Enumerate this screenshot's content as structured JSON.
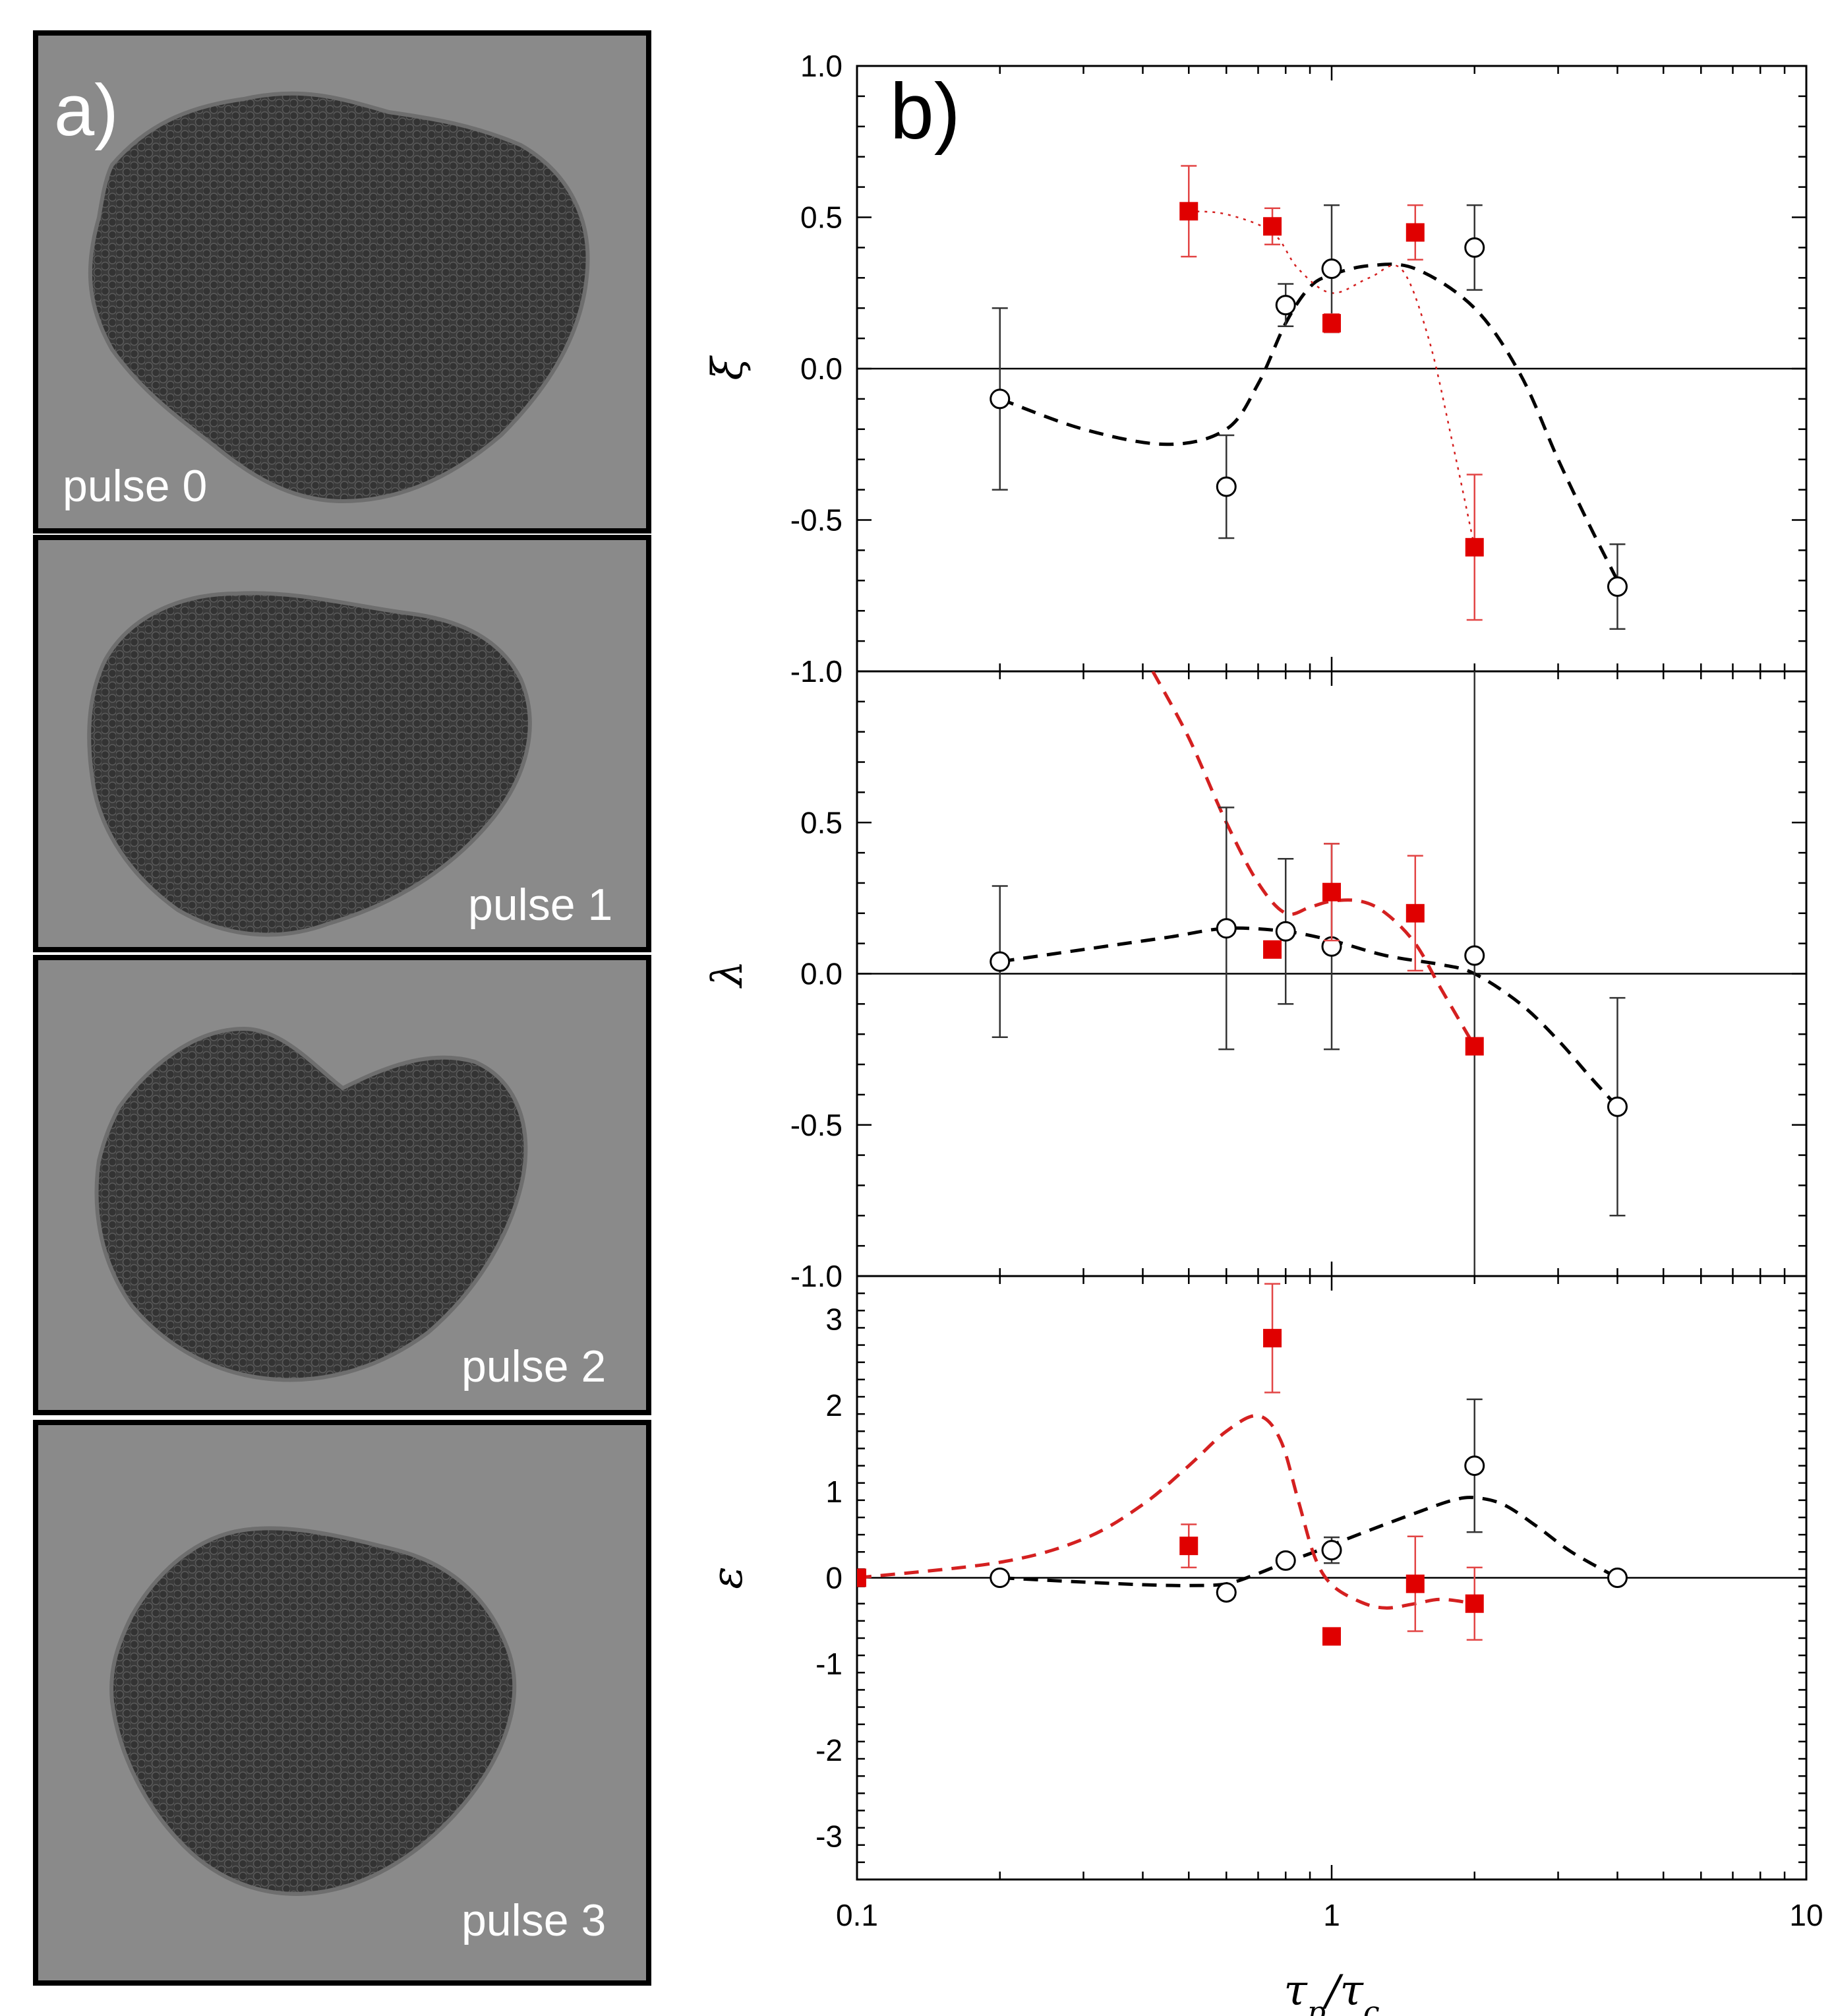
{
  "panel_a": {
    "label": "a)",
    "images": [
      {
        "label": "pulse 0"
      },
      {
        "label": "pulse 1"
      },
      {
        "label": "pulse 2"
      },
      {
        "label": "pulse 3"
      }
    ]
  },
  "chart_data": {
    "label": "b)",
    "type": "scatter",
    "xscale": "log",
    "xlim": [
      0.1,
      10
    ],
    "xlabel": "τp/τc",
    "xticks": [
      0.1,
      1,
      10
    ],
    "xtick_labels": [
      "0.1",
      "1",
      "10"
    ],
    "colors": {
      "open": "#000000",
      "red": "#e00000",
      "axes": "#000000"
    },
    "panels": [
      {
        "ylabel": "ξ",
        "ylim": [
          -1.0,
          1.0
        ],
        "yticks": [
          1.0,
          0.5,
          0.0,
          -0.5,
          -1.0
        ],
        "ytick_labels": [
          "1.0",
          "0.5",
          "0.0",
          "-0.5",
          "-1.0"
        ],
        "series": [
          {
            "name": "open circles",
            "marker": "open-circle",
            "x": [
              0.2,
              0.6,
              0.8,
              1.0,
              2.0,
              4.0
            ],
            "y": [
              -0.1,
              -0.39,
              0.21,
              0.33,
              0.4,
              -0.72
            ],
            "err": [
              0.3,
              0.17,
              0.07,
              0.21,
              0.14,
              0.14
            ]
          },
          {
            "name": "red squares",
            "marker": "filled-square",
            "x": [
              0.5,
              0.75,
              1.0,
              1.5,
              2.0
            ],
            "y": [
              0.52,
              0.47,
              0.15,
              0.45,
              -0.59
            ],
            "err": [
              0.15,
              0.06,
              0.03,
              0.09,
              0.24
            ]
          }
        ],
        "fits": [
          {
            "name": "black dashed fit",
            "style": "dashed",
            "x": [
              0.2,
              0.3,
              0.45,
              0.6,
              0.7,
              0.8,
              0.9,
              1.0,
              1.2,
              1.5,
              2.0,
              2.5,
              3.0,
              3.5,
              4.0
            ],
            "y": [
              -0.1,
              -0.2,
              -0.25,
              -0.2,
              -0.05,
              0.15,
              0.27,
              0.31,
              0.34,
              0.33,
              0.2,
              -0.02,
              -0.3,
              -0.52,
              -0.7
            ]
          },
          {
            "name": "red dotted fit",
            "style": "dotted",
            "x": [
              0.5,
              0.6,
              0.75,
              0.85,
              1.0,
              1.2,
              1.4,
              1.6,
              1.8,
              2.0
            ],
            "y": [
              0.52,
              0.51,
              0.45,
              0.33,
              0.25,
              0.3,
              0.33,
              0.1,
              -0.25,
              -0.59
            ]
          }
        ]
      },
      {
        "ylabel": "λ",
        "ylim": [
          -1.0,
          1.0
        ],
        "yticks": [
          1.0,
          0.5,
          0.0,
          -0.5,
          -1.0
        ],
        "ytick_labels": [
          "1.0",
          "0.5",
          "0.0",
          "-0.5",
          "-1.0"
        ],
        "series": [
          {
            "name": "open circles",
            "marker": "open-circle",
            "x": [
              0.2,
              0.6,
              0.8,
              1.0,
              2.0,
              4.0
            ],
            "y": [
              0.04,
              0.15,
              0.14,
              0.09,
              0.06,
              -0.44
            ],
            "err": [
              0.25,
              0.4,
              0.24,
              0.34,
              1.2,
              0.36
            ]
          },
          {
            "name": "red squares",
            "marker": "filled-square",
            "x": [
              0.75,
              1.0,
              1.5,
              2.0
            ],
            "y": [
              0.08,
              0.27,
              0.2,
              -0.24
            ],
            "err": [
              0.0,
              0.16,
              0.19,
              0.0
            ]
          }
        ],
        "fits": [
          {
            "name": "black dashed fit",
            "style": "dashed",
            "x": [
              0.2,
              0.3,
              0.45,
              0.6,
              0.8,
              1.0,
              1.3,
              1.7,
              2.0,
              2.5,
              3.0,
              3.5,
              4.0
            ],
            "y": [
              0.04,
              0.08,
              0.12,
              0.15,
              0.14,
              0.11,
              0.06,
              0.03,
              0.0,
              -0.1,
              -0.22,
              -0.34,
              -0.44
            ]
          },
          {
            "name": "red dashed fit",
            "style": "dashed",
            "x": [
              0.42,
              0.5,
              0.6,
              0.7,
              0.8,
              0.9,
              1.0,
              1.15,
              1.3,
              1.5,
              1.7,
              2.0
            ],
            "y": [
              1.0,
              0.78,
              0.5,
              0.3,
              0.2,
              0.22,
              0.24,
              0.24,
              0.2,
              0.1,
              -0.05,
              -0.24
            ]
          }
        ]
      },
      {
        "ylabel": "ε",
        "ylim": [
          -3.5,
          3.5
        ],
        "yticks": [
          3,
          2,
          1,
          0,
          -1,
          -2,
          -3
        ],
        "ytick_labels": [
          "3",
          "2",
          "1",
          "0",
          "-1",
          "-2",
          "-3"
        ],
        "series": [
          {
            "name": "open circles",
            "marker": "open-circle",
            "x": [
              0.2,
              0.6,
              0.8,
              1.0,
              2.0,
              4.0
            ],
            "y": [
              0.0,
              -0.17,
              0.2,
              0.32,
              1.3,
              0.0
            ],
            "err": [
              0.05,
              0.0,
              0.05,
              0.15,
              0.77,
              0.05
            ]
          },
          {
            "name": "red squares",
            "marker": "filled-square",
            "x": [
              0.1,
              0.5,
              0.75,
              1.0,
              1.5,
              2.0
            ],
            "y": [
              0.0,
              0.37,
              2.78,
              -0.68,
              -0.07,
              -0.3
            ],
            "err": [
              0.0,
              0.25,
              0.63,
              0.0,
              0.55,
              0.42
            ]
          }
        ],
        "fits": [
          {
            "name": "black dashed fit",
            "style": "dashed",
            "x": [
              0.2,
              0.3,
              0.4,
              0.5,
              0.6,
              0.7,
              0.8,
              0.9,
              1.0,
              1.2,
              1.5,
              1.8,
              2.0,
              2.3,
              2.7,
              3.2,
              4.0
            ],
            "y": [
              0.0,
              -0.05,
              -0.08,
              -0.09,
              -0.07,
              0.05,
              0.18,
              0.28,
              0.38,
              0.55,
              0.75,
              0.9,
              0.93,
              0.85,
              0.6,
              0.3,
              0.0
            ]
          },
          {
            "name": "red dashed fit",
            "style": "dashed",
            "x": [
              0.1,
              0.2,
              0.3,
              0.4,
              0.5,
              0.6,
              0.7,
              0.78,
              0.85,
              0.92,
              1.0,
              1.15,
              1.3,
              1.5,
              1.7,
              2.0
            ],
            "y": [
              0.0,
              0.18,
              0.45,
              0.85,
              1.3,
              1.7,
              1.88,
              1.6,
              0.9,
              0.25,
              -0.08,
              -0.28,
              -0.35,
              -0.3,
              -0.25,
              -0.3
            ]
          }
        ]
      }
    ]
  }
}
